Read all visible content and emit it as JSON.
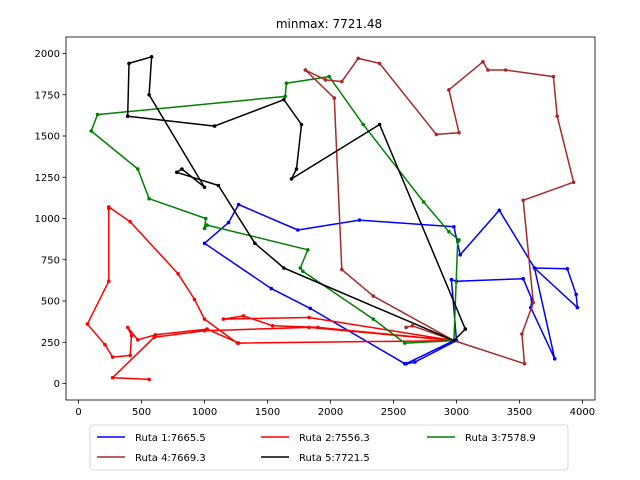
{
  "chart_data": {
    "type": "line",
    "title": "minmax: 7721.48",
    "xlim": [
      -100,
      4100
    ],
    "ylim": [
      -100,
      2100
    ],
    "x_ticks": [
      0,
      500,
      1000,
      1500,
      2000,
      2500,
      3000,
      3500,
      4000
    ],
    "y_ticks": [
      0,
      250,
      500,
      750,
      1000,
      1250,
      1500,
      1750,
      2000
    ],
    "legend_position": "bottom-outside",
    "series": [
      {
        "name": "Ruta 1:7665.5",
        "color": "#0000ff",
        "points": [
          [
            2980,
            260
          ],
          [
            2600,
            120
          ],
          [
            2670,
            130
          ],
          [
            3000,
            260
          ],
          [
            2960,
            630
          ],
          [
            3000,
            620
          ],
          [
            3530,
            635
          ],
          [
            3600,
            510
          ],
          [
            3590,
            460
          ],
          [
            3780,
            150
          ],
          [
            3620,
            700
          ],
          [
            3880,
            695
          ],
          [
            3950,
            540
          ],
          [
            3960,
            460
          ],
          [
            3620,
            700
          ],
          [
            3340,
            1050
          ],
          [
            3030,
            780
          ],
          [
            2980,
            950
          ],
          [
            2230,
            990
          ],
          [
            1740,
            930
          ],
          [
            1270,
            1085
          ],
          [
            1190,
            975
          ],
          [
            1000,
            850
          ],
          [
            1530,
            575
          ],
          [
            1840,
            455
          ],
          [
            2590,
            120
          ]
        ]
      },
      {
        "name": "Ruta 2:7556.3",
        "color": "#ff0000",
        "points": [
          [
            2980,
            260
          ],
          [
            1830,
            400
          ],
          [
            1150,
            390
          ],
          [
            1310,
            410
          ],
          [
            1540,
            350
          ],
          [
            1900,
            340
          ],
          [
            2980,
            260
          ],
          [
            1270,
            245
          ],
          [
            1020,
            330
          ],
          [
            610,
            295
          ],
          [
            470,
            265
          ],
          [
            390,
            340
          ],
          [
            420,
            290
          ],
          [
            410,
            170
          ],
          [
            270,
            160
          ],
          [
            210,
            235
          ],
          [
            70,
            360
          ],
          [
            240,
            620
          ],
          [
            240,
            1060
          ],
          [
            240,
            1070
          ],
          [
            410,
            980
          ],
          [
            790,
            665
          ],
          [
            920,
            510
          ],
          [
            1000,
            390
          ],
          [
            1260,
            245
          ],
          [
            2980,
            260
          ],
          [
            1830,
            340
          ],
          [
            1000,
            320
          ],
          [
            600,
            280
          ],
          [
            270,
            35
          ],
          [
            560,
            25
          ]
        ]
      },
      {
        "name": "Ruta 3:7578.9",
        "color": "#008000",
        "points": [
          [
            2980,
            260
          ],
          [
            2590,
            245
          ],
          [
            2340,
            390
          ],
          [
            1780,
            680
          ],
          [
            1760,
            700
          ],
          [
            1820,
            810
          ],
          [
            1020,
            960
          ],
          [
            1000,
            940
          ],
          [
            1010,
            1000
          ],
          [
            560,
            1120
          ],
          [
            470,
            1300
          ],
          [
            100,
            1530
          ],
          [
            150,
            1630
          ],
          [
            1640,
            1740
          ],
          [
            1650,
            1820
          ],
          [
            1990,
            1860
          ],
          [
            2260,
            1570
          ],
          [
            2740,
            1100
          ],
          [
            2940,
            920
          ],
          [
            3020,
            870
          ],
          [
            3010,
            860
          ],
          [
            2980,
            260
          ]
        ]
      },
      {
        "name": "Ruta 4:7669.3",
        "color": "#a52a2a",
        "points": [
          [
            2980,
            260
          ],
          [
            2340,
            530
          ],
          [
            2090,
            690
          ],
          [
            2030,
            1730
          ],
          [
            1800,
            1900
          ],
          [
            1960,
            1840
          ],
          [
            2090,
            1830
          ],
          [
            2220,
            1970
          ],
          [
            2390,
            1940
          ],
          [
            2840,
            1510
          ],
          [
            3020,
            1520
          ],
          [
            2940,
            1780
          ],
          [
            3210,
            1950
          ],
          [
            3250,
            1900
          ],
          [
            3390,
            1900
          ],
          [
            3770,
            1860
          ],
          [
            3800,
            1620
          ],
          [
            3930,
            1220
          ],
          [
            3530,
            1110
          ],
          [
            3610,
            490
          ],
          [
            3520,
            300
          ],
          [
            3540,
            120
          ],
          [
            2980,
            260
          ],
          [
            2650,
            350
          ],
          [
            2600,
            340
          ]
        ]
      },
      {
        "name": "Ruta 5:7721.5",
        "color": "#000000",
        "points": [
          [
            2980,
            260
          ],
          [
            3070,
            330
          ],
          [
            2390,
            1570
          ],
          [
            1690,
            1240
          ],
          [
            1730,
            1300
          ],
          [
            1770,
            1570
          ],
          [
            1630,
            1720
          ],
          [
            1080,
            1560
          ],
          [
            390,
            1620
          ],
          [
            400,
            1940
          ],
          [
            580,
            1980
          ],
          [
            560,
            1750
          ],
          [
            1000,
            1190
          ],
          [
            820,
            1300
          ],
          [
            780,
            1280
          ],
          [
            1110,
            1200
          ],
          [
            1400,
            850
          ],
          [
            1630,
            700
          ],
          [
            2980,
            260
          ]
        ]
      }
    ]
  }
}
